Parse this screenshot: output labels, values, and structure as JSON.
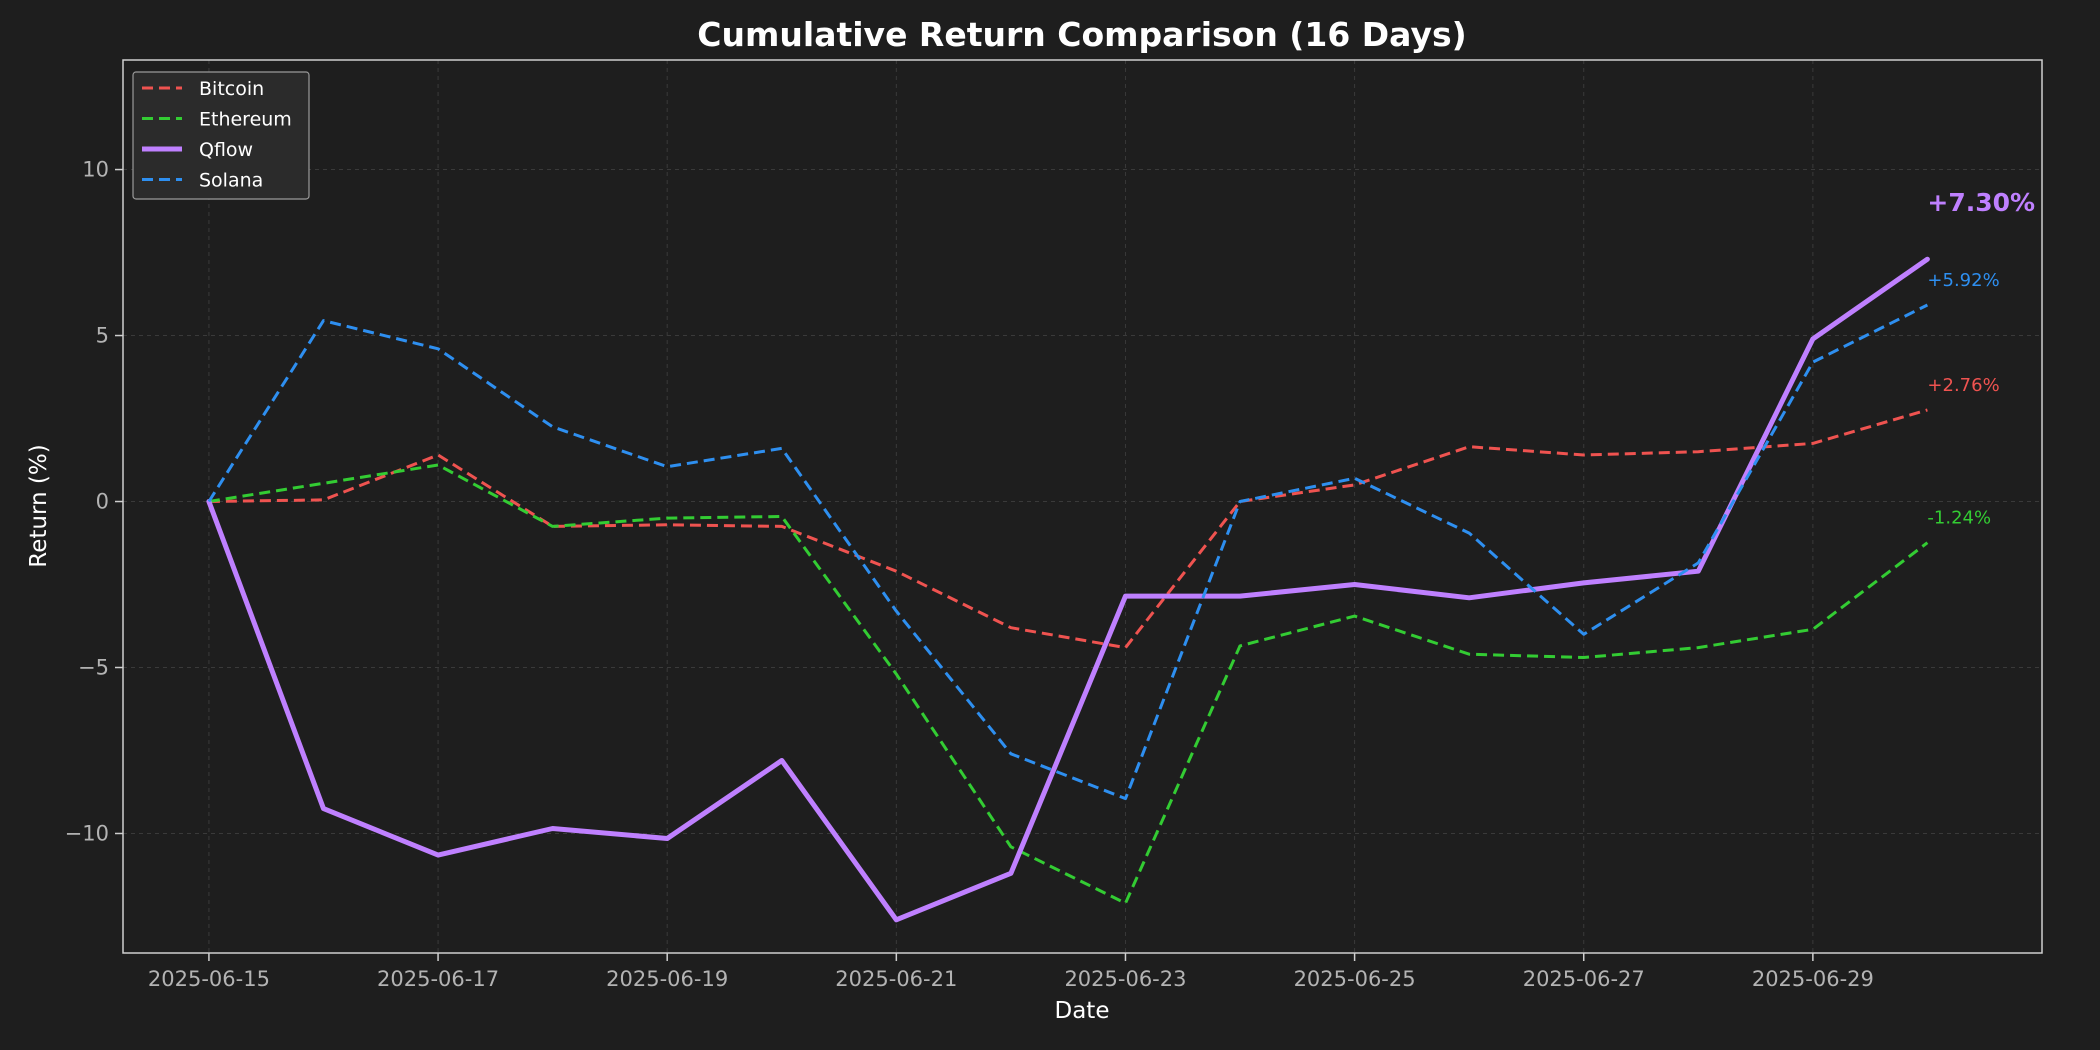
{
  "chart_data": {
    "type": "line",
    "title": "Cumulative Return Comparison (16 Days)",
    "xlabel": "Date",
    "ylabel": "Return (%)",
    "x": [
      "2025-06-15",
      "2025-06-16",
      "2025-06-17",
      "2025-06-18",
      "2025-06-19",
      "2025-06-20",
      "2025-06-21",
      "2025-06-22",
      "2025-06-23",
      "2025-06-24",
      "2025-06-25",
      "2025-06-26",
      "2025-06-27",
      "2025-06-28",
      "2025-06-29",
      "2025-06-30"
    ],
    "xticks": [
      "2025-06-15",
      "2025-06-17",
      "2025-06-19",
      "2025-06-21",
      "2025-06-23",
      "2025-06-25",
      "2025-06-27",
      "2025-06-29"
    ],
    "xlim": [
      "2025-06-14T06:00",
      "2025-07-01T00:00"
    ],
    "ylim": [
      -13.6,
      13.3
    ],
    "yticks": [
      10,
      5,
      0,
      -5,
      -10
    ],
    "ytick_labels": [
      "10",
      "5",
      "0",
      "−5",
      "−10"
    ],
    "grid": true,
    "legend_position": "top-left",
    "background": "#1e1e1e",
    "series": [
      {
        "name": "Bitcoin",
        "color": "#ef5350",
        "style": "dashed",
        "width": 3,
        "values": [
          0,
          0.05,
          1.4,
          -0.75,
          -0.7,
          -0.75,
          -2.1,
          -3.8,
          -4.4,
          0,
          0.5,
          1.65,
          1.4,
          1.5,
          1.75,
          2.76
        ],
        "end_label": "+2.76%"
      },
      {
        "name": "Ethereum",
        "color": "#33cc33",
        "style": "dashed",
        "width": 3,
        "values": [
          0,
          0.55,
          1.1,
          -0.75,
          -0.5,
          -0.45,
          -5.2,
          -10.4,
          -12.1,
          -4.35,
          -3.45,
          -4.6,
          -4.7,
          -4.4,
          -3.85,
          -1.24
        ],
        "end_label": "-1.24%"
      },
      {
        "name": "Qflow",
        "color": "#bf80ff",
        "style": "solid",
        "width": 5,
        "values": [
          0,
          -9.25,
          -10.65,
          -9.85,
          -10.15,
          -7.8,
          -12.6,
          -11.2,
          -2.85,
          -2.85,
          -2.5,
          -2.9,
          -2.45,
          -2.1,
          4.9,
          7.3
        ],
        "end_label": "+7.30%"
      },
      {
        "name": "Solana",
        "color": "#2e8ff0",
        "style": "dashed",
        "width": 3,
        "values": [
          0,
          5.45,
          4.6,
          2.25,
          1.05,
          1.6,
          -3.3,
          -7.6,
          -8.95,
          0,
          0.7,
          -0.95,
          -4.0,
          -1.85,
          4.2,
          5.92
        ],
        "end_label": "+5.92%"
      }
    ]
  }
}
